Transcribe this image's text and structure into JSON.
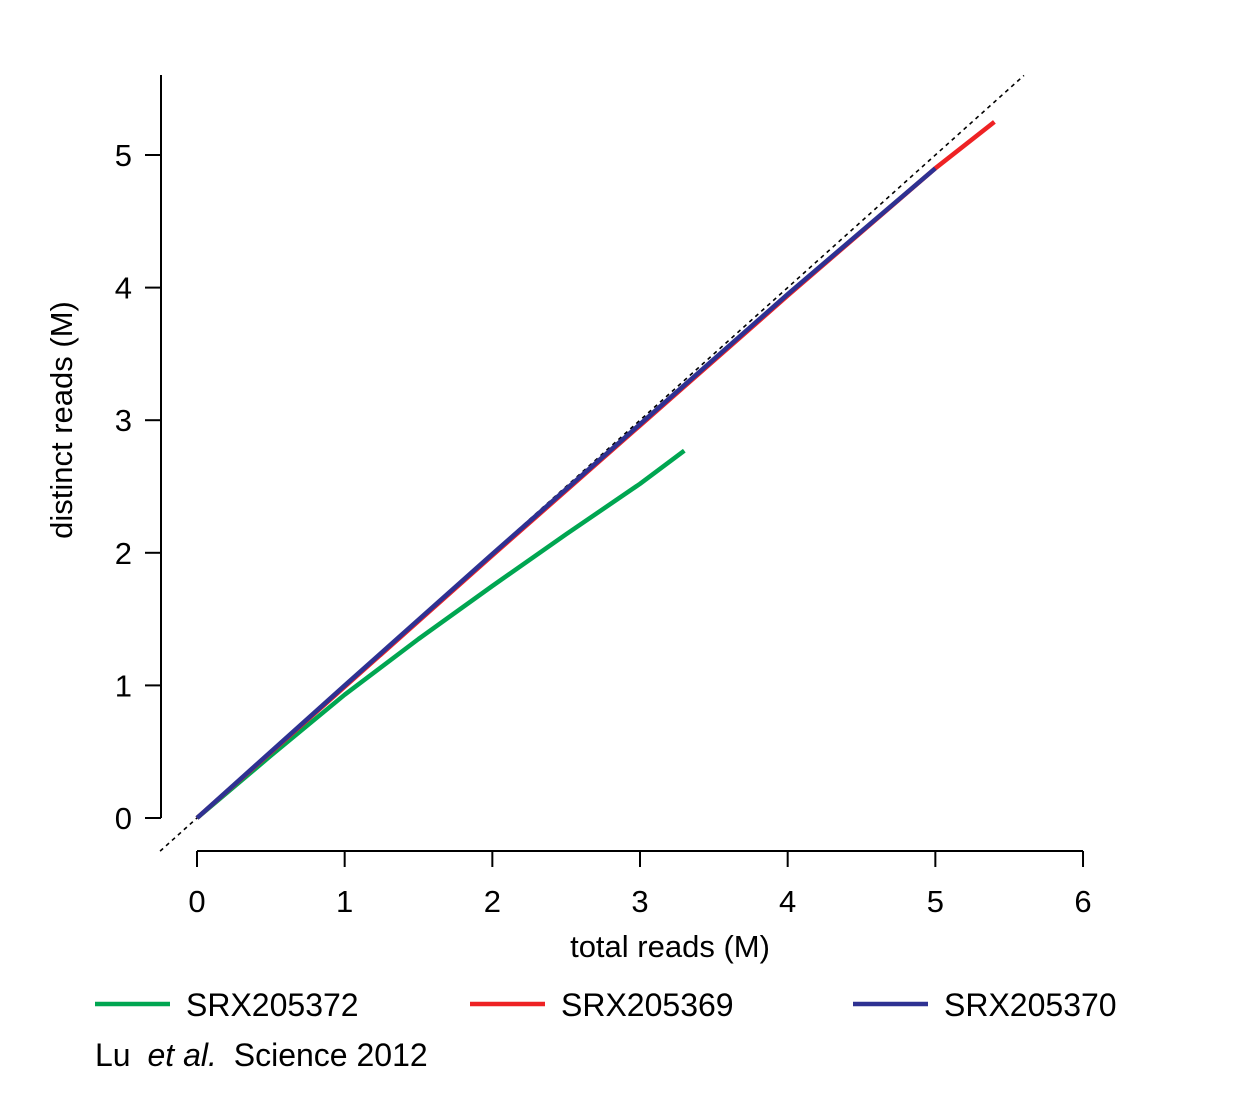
{
  "chart_data": {
    "type": "line",
    "xlabel": "total reads (M)",
    "ylabel": "distinct reads (M)",
    "xlim": [
      0,
      6
    ],
    "ylim": [
      0,
      5.6
    ],
    "xticks": [
      0,
      1,
      2,
      3,
      4,
      5,
      6
    ],
    "yticks": [
      0,
      1,
      2,
      3,
      4,
      5
    ],
    "reference_line": {
      "slope": 1,
      "intercept": 0,
      "style": "dotted",
      "color": "#000000"
    },
    "series": [
      {
        "name": "SRX205372",
        "color": "#00A651",
        "x": [
          0,
          0.5,
          1.0,
          1.5,
          2.0,
          2.5,
          3.0,
          3.3
        ],
        "y": [
          0,
          0.47,
          0.93,
          1.35,
          1.75,
          2.14,
          2.52,
          2.77
        ]
      },
      {
        "name": "SRX205369",
        "color": "#EE2224",
        "x": [
          0,
          1.0,
          2.0,
          3.0,
          4.0,
          5.0,
          5.4
        ],
        "y": [
          0,
          0.99,
          1.98,
          2.96,
          3.94,
          4.9,
          5.25
        ]
      },
      {
        "name": "SRX205370",
        "color": "#2E3192",
        "x": [
          0,
          1.0,
          2.0,
          3.0,
          4.0,
          5.0
        ],
        "y": [
          0,
          1.0,
          1.99,
          2.97,
          3.95,
          4.9
        ]
      }
    ],
    "legend": {
      "placement": "bottom",
      "entries": [
        "SRX205372",
        "SRX205369",
        "SRX205370"
      ]
    },
    "citation": {
      "author": "Lu",
      "etal": "et al.",
      "rest": "Science 2012"
    }
  }
}
